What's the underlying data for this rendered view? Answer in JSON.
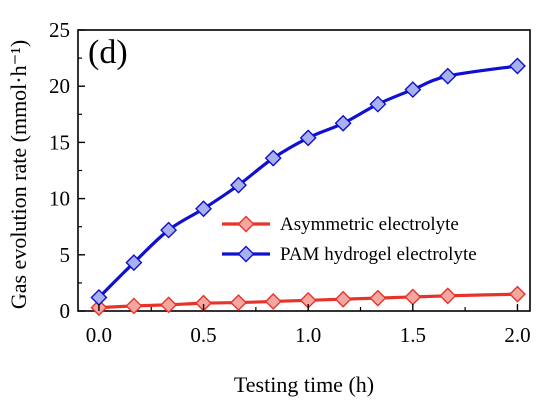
{
  "chart_data": {
    "type": "line",
    "panel_label": "(d)",
    "xlabel": "Testing time (h)",
    "ylabel": "Gas evolution rate (mmol·h⁻¹)",
    "xlim": [
      -0.1,
      2.06
    ],
    "ylim": [
      0,
      25
    ],
    "xticks": [
      0.0,
      0.5,
      1.0,
      1.5,
      2.0
    ],
    "xtick_labels": [
      "0.0",
      "0.5",
      "1.0",
      "1.5",
      "2.0"
    ],
    "yticks": [
      0,
      5,
      10,
      15,
      20,
      25
    ],
    "ytick_labels": [
      "0",
      "5",
      "10",
      "15",
      "20",
      "25"
    ],
    "grid": false,
    "legend_position": "center-right",
    "series": [
      {
        "name": "Asymmetric electrolyte",
        "color": "#e8332a",
        "marker_fill": "#f4a7a1",
        "marker": "diamond",
        "x": [
          0.0,
          0.167,
          0.333,
          0.5,
          0.667,
          0.833,
          1.0,
          1.167,
          1.333,
          1.5,
          1.667,
          2.0
        ],
        "y": [
          0.3,
          0.45,
          0.55,
          0.7,
          0.75,
          0.85,
          0.95,
          1.05,
          1.15,
          1.25,
          1.35,
          1.5
        ]
      },
      {
        "name": "PAM hydrogel electrolyte",
        "color": "#1010d0",
        "marker_fill": "#a9b0ee",
        "marker": "diamond",
        "x": [
          0.0,
          0.167,
          0.333,
          0.5,
          0.667,
          0.833,
          1.0,
          1.167,
          1.333,
          1.5,
          1.667,
          2.0
        ],
        "y": [
          1.2,
          4.3,
          7.2,
          9.1,
          11.2,
          13.6,
          15.4,
          16.7,
          18.4,
          19.7,
          20.9,
          21.8
        ]
      }
    ]
  }
}
